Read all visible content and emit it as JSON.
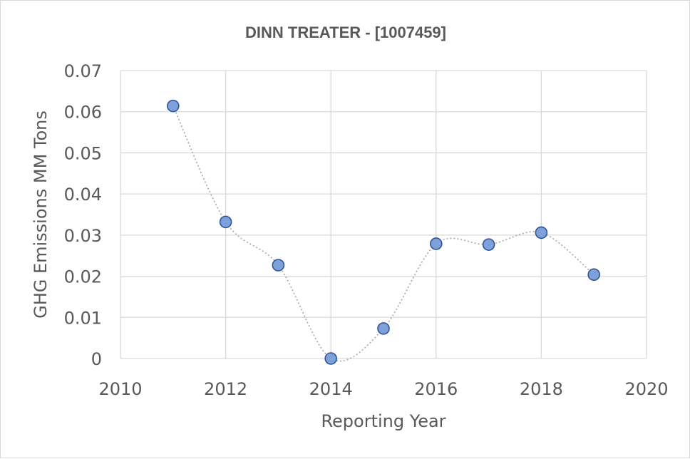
{
  "chart_data": {
    "type": "scatter",
    "title": "DINN TREATER - [1007459]",
    "xlabel": "Reporting Year",
    "ylabel": "GHG Emissions MM Tons",
    "xlim": [
      2010,
      2020
    ],
    "ylim": [
      0,
      0.07
    ],
    "xticks": [
      "2010",
      "2012",
      "2014",
      "2016",
      "2018",
      "2020"
    ],
    "yticks": [
      "0",
      "0.01",
      "0.02",
      "0.03",
      "0.04",
      "0.05",
      "0.06",
      "0.07"
    ],
    "grid": true,
    "smoothed_line": true,
    "marker_color": "#7ea1dc",
    "marker_edge_color": "#2f5597",
    "line_color": "#a6a6a6",
    "series": [
      {
        "x": [
          2011,
          2012,
          2013,
          2014,
          2015,
          2016,
          2017,
          2018,
          2019
        ],
        "y": [
          0.0614,
          0.0332,
          0.0227,
          0.0,
          0.0073,
          0.0279,
          0.0277,
          0.0306,
          0.0204
        ]
      }
    ]
  }
}
